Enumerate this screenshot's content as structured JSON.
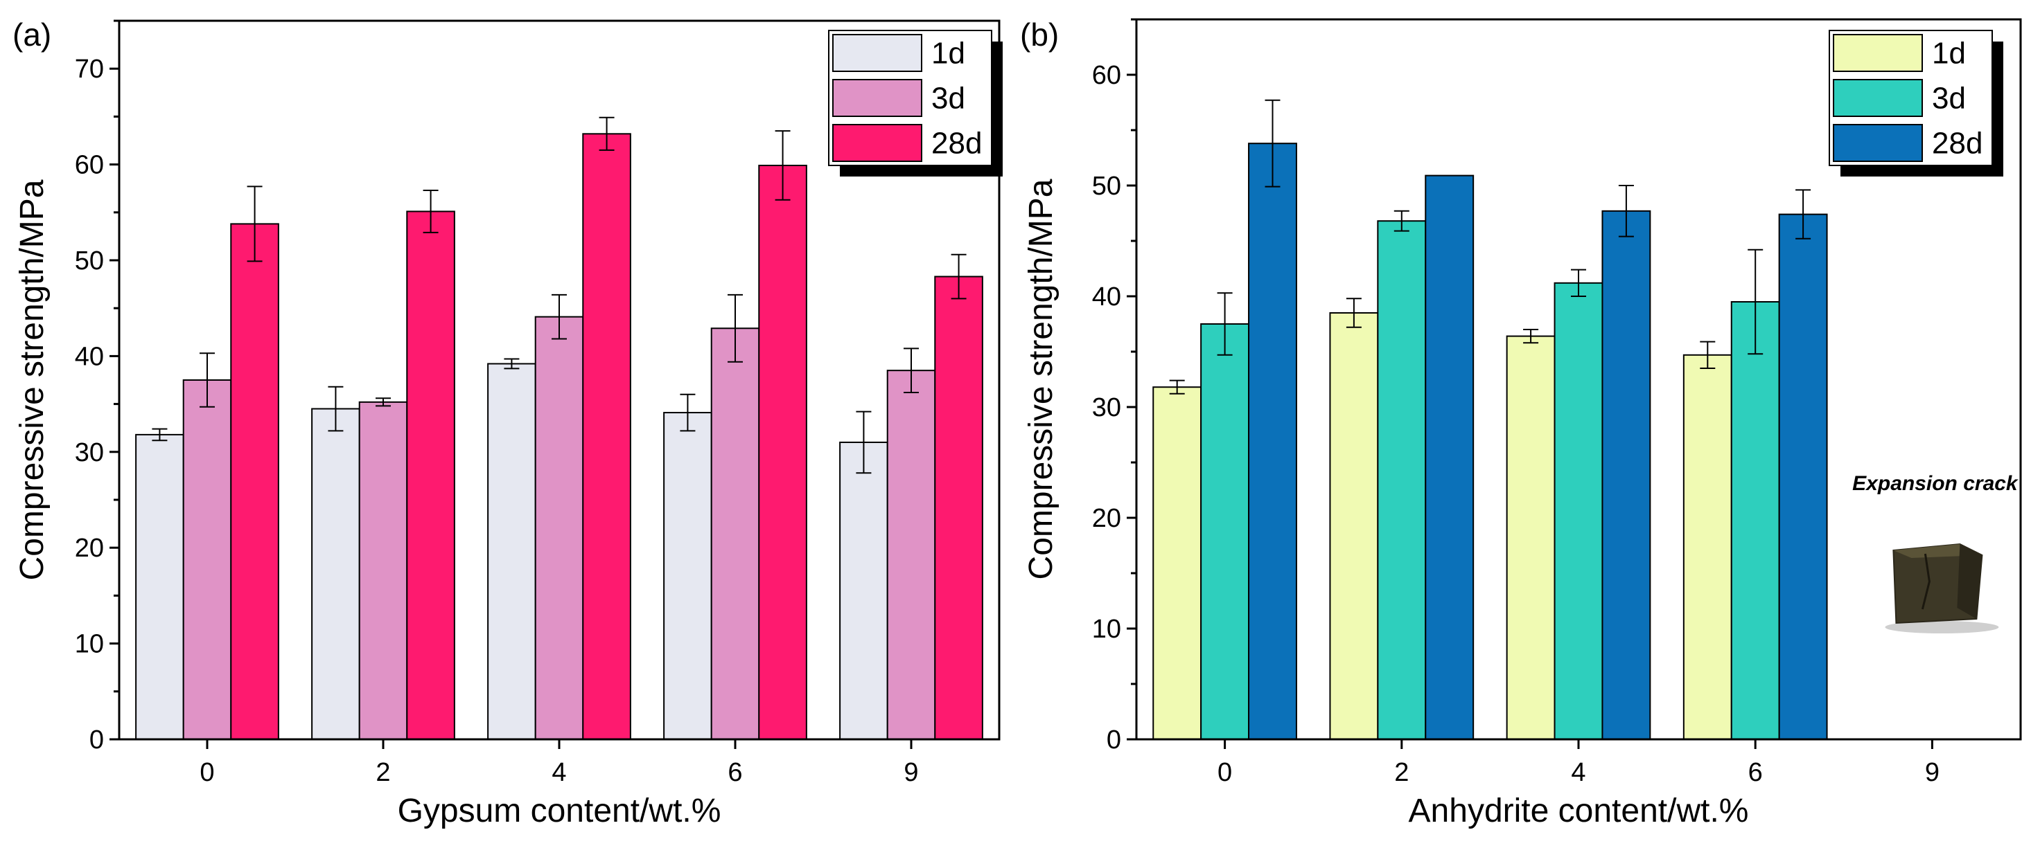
{
  "figure": {
    "description": "Compressive strength vs additive content"
  },
  "chart_data": [
    {
      "panel": "(a)",
      "type": "bar",
      "title": "",
      "xlabel": "Gypsum content/wt.%",
      "ylabel": "Compressive strength/MPa",
      "ylim": [
        0,
        75
      ],
      "yticks": [
        0,
        10,
        20,
        30,
        40,
        50,
        60,
        70
      ],
      "categories": [
        "0",
        "2",
        "4",
        "6",
        "9"
      ],
      "legend_position": "top-right",
      "series": [
        {
          "name": "1d",
          "color": "#e6e8f1",
          "values": [
            31.8,
            34.5,
            39.2,
            34.1,
            31.0
          ],
          "errors": [
            0.6,
            2.3,
            0.5,
            1.9,
            3.2
          ]
        },
        {
          "name": "3d",
          "color": "#e093c6",
          "values": [
            37.5,
            35.2,
            44.1,
            42.9,
            38.5
          ],
          "errors": [
            2.8,
            0.4,
            2.3,
            3.5,
            2.3
          ]
        },
        {
          "name": "28d",
          "color": "#fe1a6f",
          "values": [
            53.8,
            55.1,
            63.2,
            59.9,
            48.3
          ],
          "errors": [
            3.9,
            2.2,
            1.7,
            3.6,
            2.3
          ]
        }
      ]
    },
    {
      "panel": "(b)",
      "type": "bar",
      "title": "",
      "xlabel": "Anhydrite content/wt.%",
      "ylabel": "Compressive strength/MPa",
      "ylim": [
        0,
        65
      ],
      "yticks": [
        0,
        10,
        20,
        30,
        40,
        50,
        60
      ],
      "categories": [
        "0",
        "2",
        "4",
        "6",
        "9"
      ],
      "legend_position": "top-right",
      "series": [
        {
          "name": "1d",
          "color": "#f0fab3",
          "values": [
            31.8,
            38.5,
            36.4,
            34.7,
            null
          ],
          "errors": [
            0.6,
            1.3,
            0.6,
            1.2,
            null
          ]
        },
        {
          "name": "3d",
          "color": "#2ecfbd",
          "values": [
            37.5,
            46.8,
            41.2,
            39.5,
            null
          ],
          "errors": [
            2.8,
            0.9,
            1.2,
            4.7,
            null
          ]
        },
        {
          "name": "28d",
          "color": "#0b71b9",
          "values": [
            53.8,
            50.9,
            47.7,
            47.4,
            null
          ],
          "errors": [
            3.9,
            0.0,
            2.3,
            2.2,
            null
          ]
        }
      ],
      "annotation": "Expansion crack"
    }
  ]
}
